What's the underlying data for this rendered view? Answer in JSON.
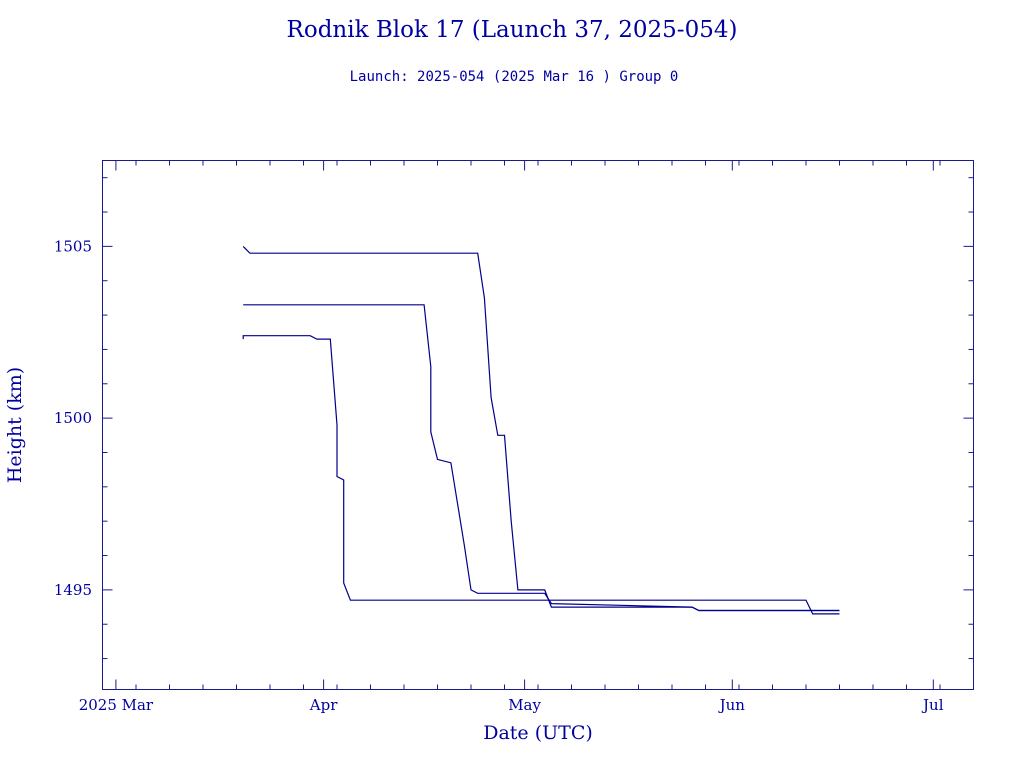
{
  "chart_data": {
    "type": "line",
    "title": "Rodnik Blok 17 (Launch 37, 2025-054)",
    "subtitle": "Launch: 2025-054  (2025 Mar 16 )  Group 0",
    "xlabel": "Date (UTC)",
    "ylabel": "Height (km)",
    "x_unit": "date",
    "xlim": [
      "2025-02-27",
      "2025-07-07"
    ],
    "ylim": [
      1492.1,
      1507.5
    ],
    "x_ticks": [
      {
        "date": "2025-03-01",
        "label": "2025 Mar"
      },
      {
        "date": "2025-04-01",
        "label": "Apr"
      },
      {
        "date": "2025-05-01",
        "label": "May"
      },
      {
        "date": "2025-06-01",
        "label": "Jun"
      },
      {
        "date": "2025-07-01",
        "label": "Jul"
      }
    ],
    "y_ticks": [
      {
        "value": 1495,
        "label": "1495"
      },
      {
        "value": 1500,
        "label": "1500"
      },
      {
        "value": 1505,
        "label": "1505"
      }
    ],
    "grid": false,
    "legend": "none",
    "color": "#00008b",
    "series": [
      {
        "points": [
          {
            "x": "2025-03-20",
            "y": 1502.3
          },
          {
            "x": "2025-03-20",
            "y": 1502.4
          },
          {
            "x": "2025-03-30",
            "y": 1502.4
          },
          {
            "x": "2025-03-31",
            "y": 1502.3
          },
          {
            "x": "2025-04-02",
            "y": 1502.3
          },
          {
            "x": "2025-04-03",
            "y": 1499.8
          },
          {
            "x": "2025-04-03",
            "y": 1498.3
          },
          {
            "x": "2025-04-04",
            "y": 1498.2
          },
          {
            "x": "2025-04-04",
            "y": 1495.2
          },
          {
            "x": "2025-04-05",
            "y": 1494.7
          },
          {
            "x": "2025-06-12",
            "y": 1494.7
          },
          {
            "x": "2025-06-13",
            "y": 1494.3
          },
          {
            "x": "2025-06-17",
            "y": 1494.3
          }
        ]
      },
      {
        "points": [
          {
            "x": "2025-03-20",
            "y": 1503.3
          },
          {
            "x": "2025-04-16",
            "y": 1503.3
          },
          {
            "x": "2025-04-17",
            "y": 1501.5
          },
          {
            "x": "2025-04-17",
            "y": 1499.6
          },
          {
            "x": "2025-04-18",
            "y": 1498.8
          },
          {
            "x": "2025-04-20",
            "y": 1498.7
          },
          {
            "x": "2025-04-22",
            "y": 1496.3
          },
          {
            "x": "2025-04-23",
            "y": 1495.0
          },
          {
            "x": "2025-04-24",
            "y": 1494.9
          },
          {
            "x": "2025-05-04",
            "y": 1494.9
          },
          {
            "x": "2025-05-05",
            "y": 1494.6
          },
          {
            "x": "2025-05-26",
            "y": 1494.5
          },
          {
            "x": "2025-05-27",
            "y": 1494.4
          },
          {
            "x": "2025-06-17",
            "y": 1494.4
          }
        ]
      },
      {
        "points": [
          {
            "x": "2025-03-20",
            "y": 1505.0
          },
          {
            "x": "2025-03-21",
            "y": 1504.8
          },
          {
            "x": "2025-04-24",
            "y": 1504.8
          },
          {
            "x": "2025-04-25",
            "y": 1503.5
          },
          {
            "x": "2025-04-26",
            "y": 1500.6
          },
          {
            "x": "2025-04-27",
            "y": 1499.5
          },
          {
            "x": "2025-04-28",
            "y": 1499.5
          },
          {
            "x": "2025-04-29",
            "y": 1497.0
          },
          {
            "x": "2025-04-30",
            "y": 1495.0
          },
          {
            "x": "2025-05-04",
            "y": 1495.0
          },
          {
            "x": "2025-05-05",
            "y": 1494.5
          },
          {
            "x": "2025-05-26",
            "y": 1494.5
          },
          {
            "x": "2025-05-27",
            "y": 1494.4
          },
          {
            "x": "2025-06-17",
            "y": 1494.4
          }
        ]
      }
    ]
  }
}
